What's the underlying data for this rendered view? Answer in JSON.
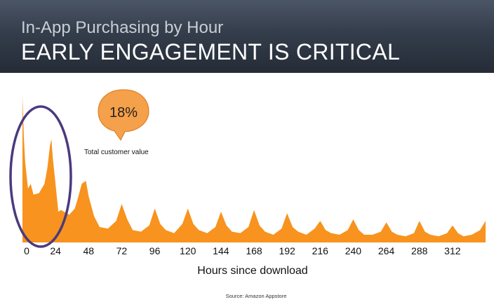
{
  "header": {
    "subtitle": "In-App Purchasing by Hour",
    "title": "EARLY ENGAGEMENT IS CRITICAL"
  },
  "callout": {
    "value": "18%",
    "caption": "Total customer value"
  },
  "source": "Source:  Amazon Appstore",
  "colors": {
    "area": "#f7931e",
    "ellipse": "#4b3a7d",
    "bubble": "#f5a04a"
  },
  "chart_data": {
    "type": "area",
    "title": "In-App Purchasing by Hour",
    "xlabel": "Hours since download",
    "ylabel": "",
    "xlim": [
      0,
      336
    ],
    "ylim": [
      0,
      100
    ],
    "xticks": [
      0,
      24,
      48,
      72,
      96,
      120,
      144,
      168,
      192,
      216,
      240,
      264,
      288,
      312
    ],
    "x": [
      0,
      1,
      2,
      4,
      6,
      8,
      12,
      16,
      18,
      20,
      21,
      22,
      24,
      26,
      28,
      30,
      34,
      38,
      40,
      43,
      46,
      48,
      52,
      56,
      62,
      68,
      72,
      76,
      80,
      86,
      92,
      96,
      100,
      104,
      110,
      116,
      120,
      124,
      128,
      134,
      140,
      144,
      148,
      152,
      158,
      164,
      168,
      172,
      176,
      182,
      188,
      192,
      196,
      200,
      206,
      212,
      216,
      220,
      224,
      230,
      236,
      240,
      244,
      248,
      254,
      260,
      264,
      268,
      272,
      278,
      284,
      288,
      292,
      296,
      302,
      308,
      312,
      316,
      320,
      326,
      332,
      336
    ],
    "values": [
      95,
      68,
      52,
      35,
      38,
      31,
      32,
      38,
      48,
      63,
      67,
      55,
      38,
      20,
      21,
      20,
      18,
      22,
      28,
      38,
      40,
      30,
      17,
      10,
      9,
      14,
      25,
      15,
      8,
      7,
      11,
      22,
      12,
      8,
      6,
      12,
      22,
      12,
      8,
      6,
      10,
      20,
      11,
      7,
      6,
      10,
      21,
      11,
      7,
      5,
      9,
      19,
      10,
      7,
      5,
      9,
      14,
      8,
      6,
      5,
      8,
      15,
      8,
      5,
      5,
      7,
      13,
      7,
      5,
      4,
      6,
      14,
      7,
      5,
      4,
      6,
      11,
      6,
      4,
      5,
      8,
      14
    ]
  }
}
